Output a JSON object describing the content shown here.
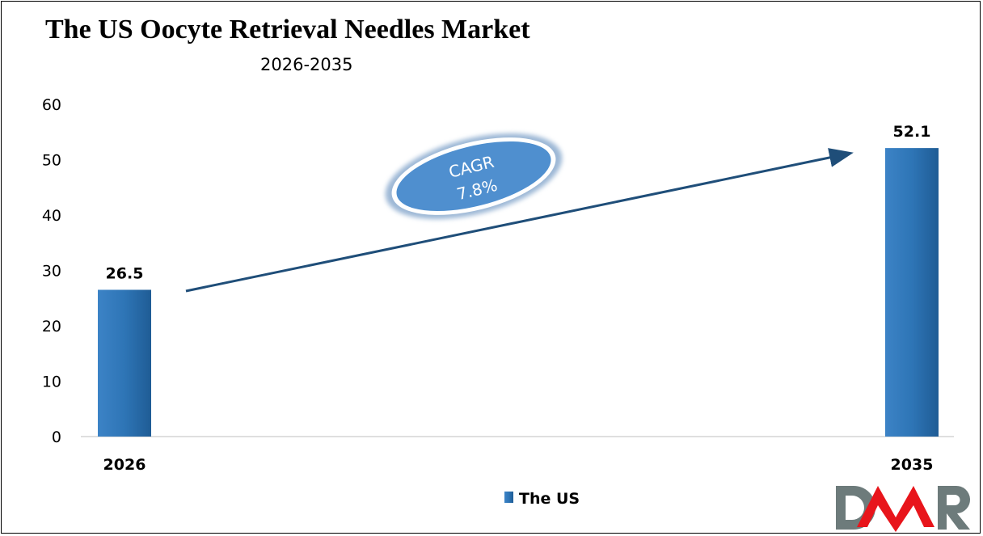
{
  "chart_data": {
    "type": "bar",
    "title": "The US Oocyte Retrieval Needles Market",
    "subtitle": "2026-2035",
    "categories": [
      "2026",
      "2035"
    ],
    "series": [
      {
        "name": "The US",
        "values": [
          26.5,
          52.1
        ],
        "color": "#2E75B6"
      }
    ],
    "data_labels": [
      "26.5",
      "52.1"
    ],
    "ylim": [
      0,
      60
    ],
    "yticks": [
      0,
      10,
      20,
      30,
      40,
      50,
      60
    ],
    "grid": false,
    "legend": "bottom-center",
    "annotation": {
      "line1": "CAGR",
      "line2": "7.8%",
      "fill": "#4F8FCF"
    }
  },
  "logo": {
    "text": "DMR",
    "colors": [
      "#6D7B7B",
      "#E8151B"
    ]
  }
}
